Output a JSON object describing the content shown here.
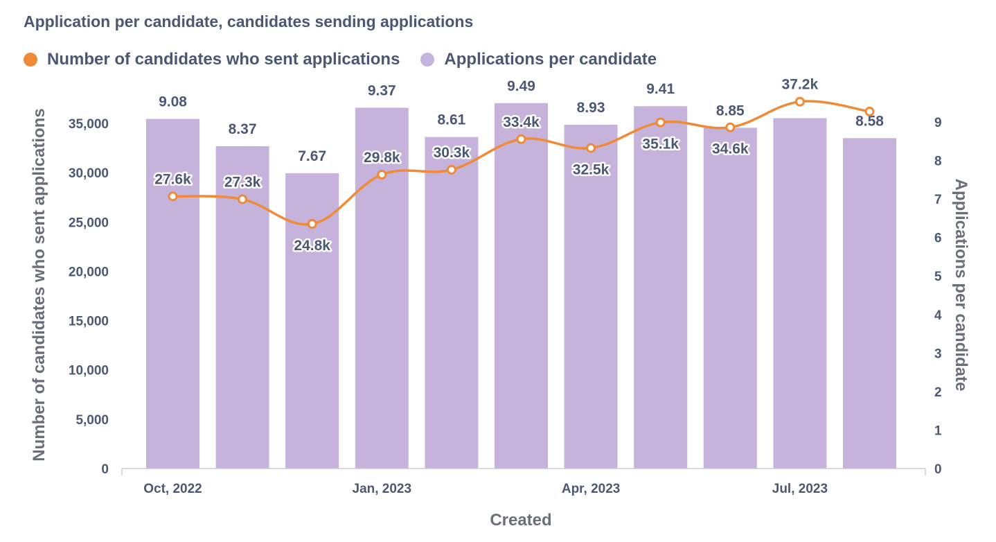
{
  "title": "Application per candidate, candidates sending applications",
  "legend": [
    {
      "label": "Number of candidates who sent applications",
      "color": "#f08a36"
    },
    {
      "label": "Applications per candidate",
      "color": "#c6b3dc"
    }
  ],
  "chart_data": {
    "type": "bar",
    "title": "Application per candidate, candidates sending applications",
    "xlabel": "Created",
    "ylabel_left": "Number of candidates who sent applications",
    "ylabel_right": "Applications per candidate",
    "x": [
      "Oct, 2022",
      "Nov, 2022",
      "Dec, 2022",
      "Jan, 2023",
      "Feb, 2023",
      "Mar, 2023",
      "Apr, 2023",
      "May, 2023",
      "Jun, 2023",
      "Jul, 2023",
      "Aug, 2023"
    ],
    "x_tick_labels": [
      "Oct, 2022",
      "Jan, 2023",
      "Apr, 2023",
      "Jul, 2023"
    ],
    "series": [
      {
        "name": "Applications per candidate",
        "type": "bar",
        "axis": "right",
        "color": "#c6b3dc",
        "values": [
          9.08,
          8.37,
          7.67,
          9.37,
          8.61,
          9.49,
          8.93,
          9.41,
          8.85,
          9.1,
          8.58
        ],
        "labels": [
          "9.08",
          "8.37",
          "7.67",
          "9.37",
          "8.61",
          "9.49",
          "8.93",
          "9.41",
          "8.85",
          "",
          "8.58"
        ]
      },
      {
        "name": "Number of candidates who sent applications",
        "type": "line",
        "axis": "left",
        "color": "#f08a36",
        "values": [
          27600,
          27300,
          24800,
          29800,
          30300,
          33400,
          32500,
          35100,
          34600,
          37200,
          36200
        ],
        "labels": [
          "27.6k",
          "27.3k",
          "24.8k",
          "29.8k",
          "30.3k",
          "33.4k",
          "32.5k",
          "35.1k",
          "34.6k",
          "37.2k",
          ""
        ]
      }
    ],
    "y_left_ticks": [
      "0",
      "5,000",
      "10,000",
      "15,000",
      "20,000",
      "25,000",
      "30,000",
      "35,000"
    ],
    "y_left_range": [
      0,
      35000
    ],
    "y_right_ticks": [
      "0",
      "1",
      "2",
      "3",
      "4",
      "5",
      "6",
      "7",
      "8",
      "9"
    ],
    "y_right_range": [
      0,
      9
    ],
    "grid": false,
    "legend_position": "top-left"
  }
}
